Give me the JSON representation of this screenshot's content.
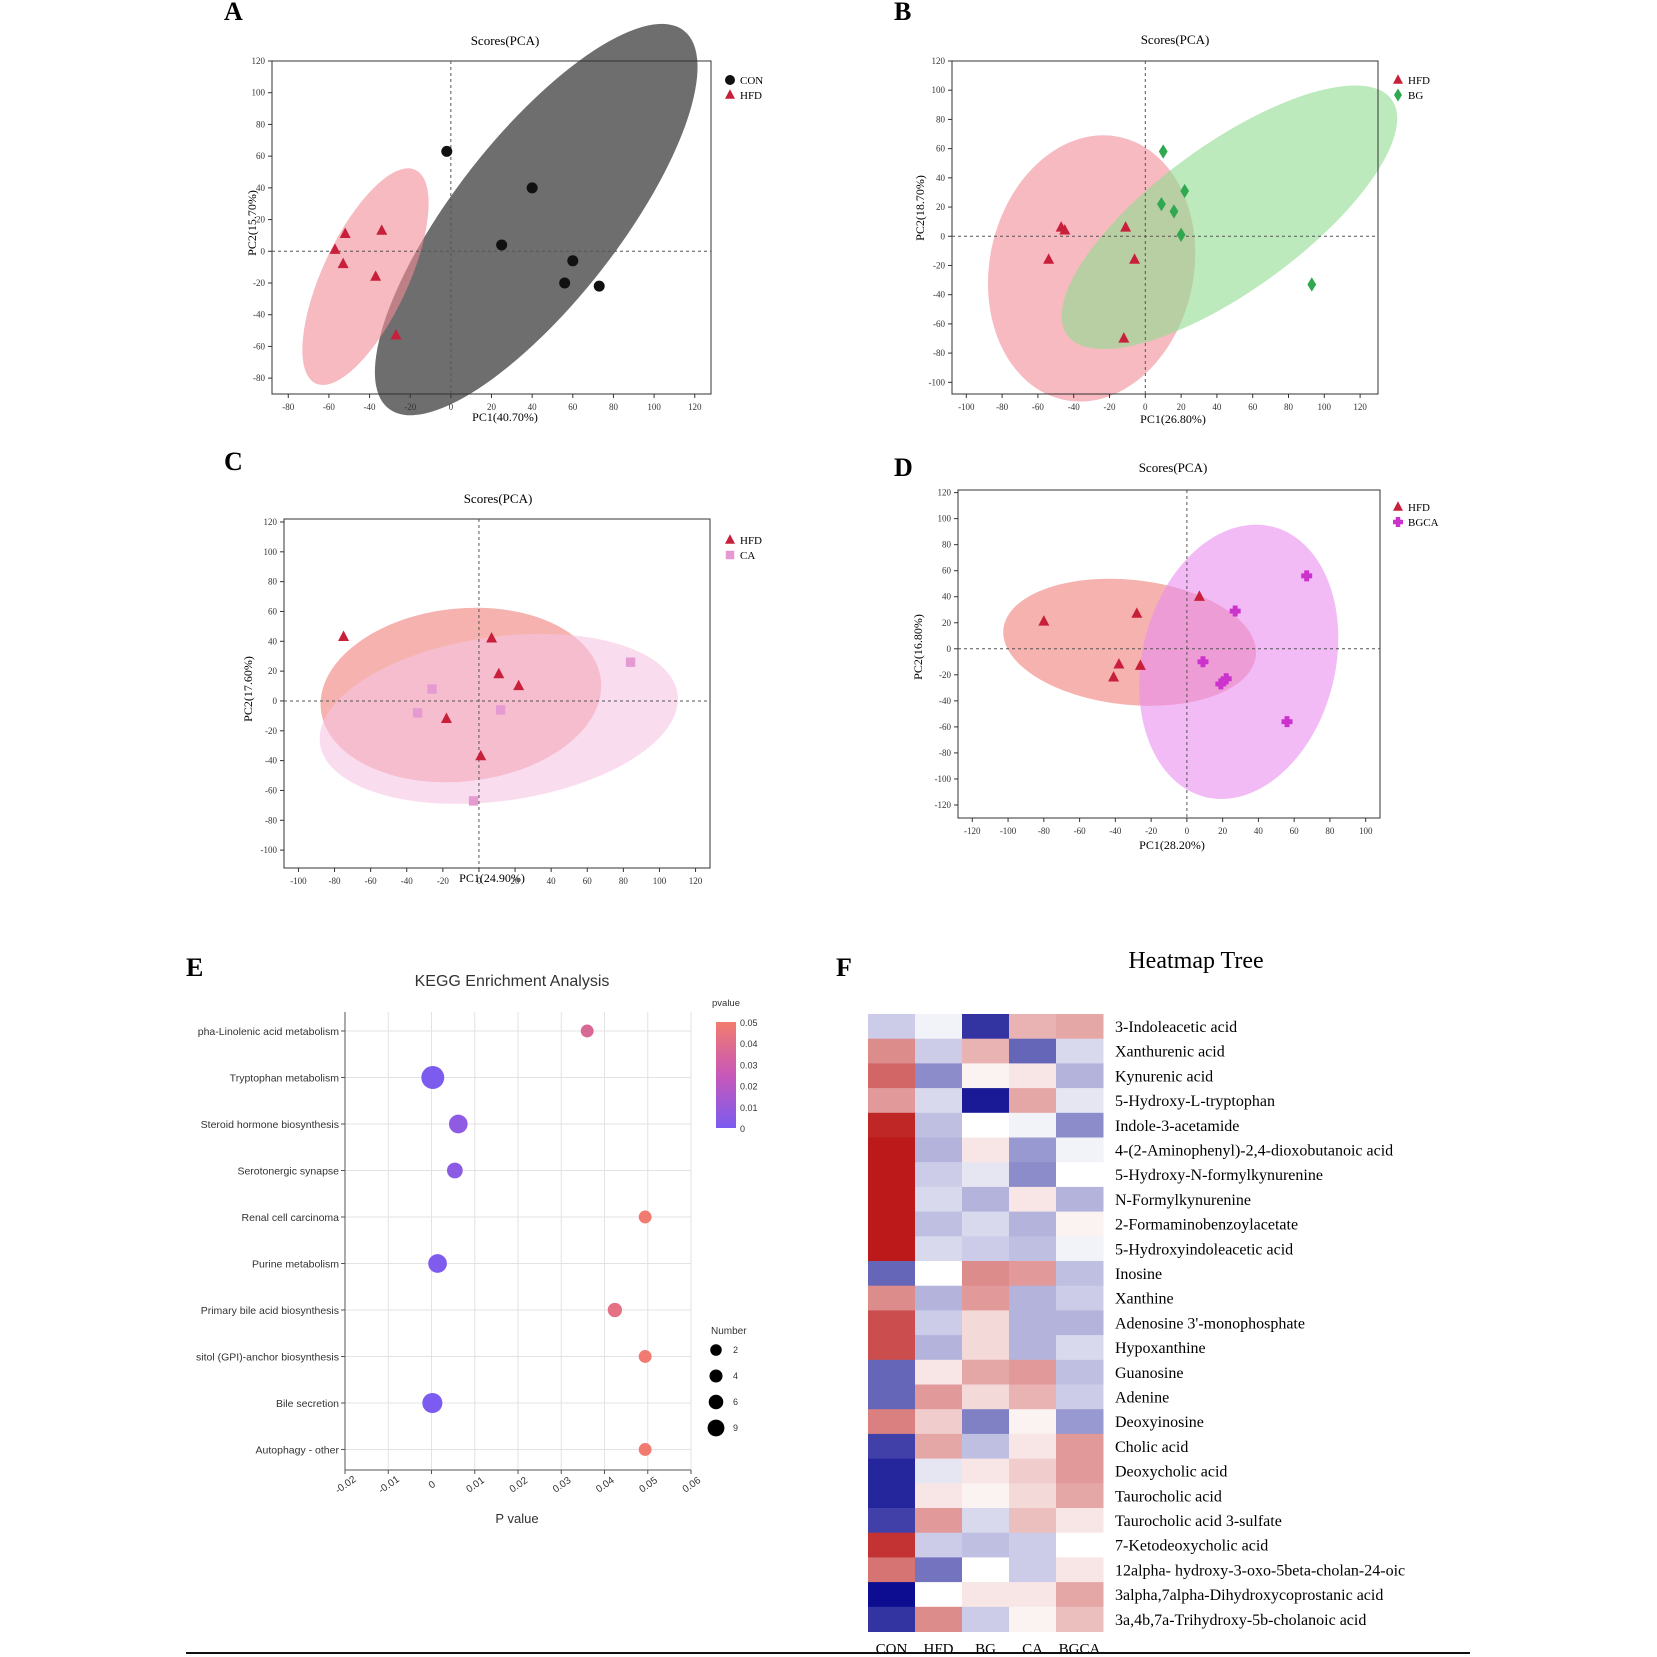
{
  "figure": {
    "panels": [
      {
        "label": "A",
        "title": "Scores(PCA)",
        "xlabel": "PC1(40.70%)",
        "ylabel": "PC2(15.70%)"
      },
      {
        "label": "B",
        "title": "Scores(PCA)",
        "xlabel": "PC1(26.80%)",
        "ylabel": "PC2(18.70%)"
      },
      {
        "label": "C",
        "title": "Scores(PCA)",
        "xlabel": "PC1(24.90%)",
        "ylabel": "PC2(17.60%)"
      },
      {
        "label": "D",
        "title": "Scores(PCA)",
        "xlabel": "PC1(28.20%)",
        "ylabel": "PC2(16.80%)"
      },
      {
        "label": "E",
        "title": "KEGG Enrichment Analysis",
        "xlabel": "P value"
      },
      {
        "label": "F",
        "title": "Heatmap Tree"
      }
    ]
  },
  "chart_data": [
    {
      "id": "A",
      "type": "scatter",
      "title": "Scores(PCA)",
      "xlabel": "PC1(40.70%)",
      "ylabel": "PC2(15.70%)",
      "xlim": [
        -88,
        128
      ],
      "ylim": [
        -90,
        120
      ],
      "xticks": [
        -80,
        -60,
        -40,
        -20,
        0,
        20,
        40,
        60,
        80,
        100,
        120
      ],
      "yticks": [
        -80,
        -60,
        -40,
        -20,
        0,
        20,
        40,
        60,
        80,
        100,
        120
      ],
      "series": [
        {
          "name": "CON",
          "marker": "circle",
          "color": "#111111",
          "fill": "#555555",
          "ellipse": {
            "cx": 42,
            "cy": 20,
            "rx": 118,
            "ry": 52,
            "angle_deg": -52
          },
          "points": [
            [
              -2,
              63
            ],
            [
              40,
              40
            ],
            [
              25,
              4
            ],
            [
              60,
              -6
            ],
            [
              56,
              -20
            ],
            [
              73,
              -22
            ]
          ]
        },
        {
          "name": "HFD",
          "marker": "triangle",
          "color": "#c8203a",
          "fill": "#f08c96",
          "ellipse": {
            "cx": -42,
            "cy": -16,
            "rx": 58,
            "ry": 27,
            "angle_deg": -65
          },
          "points": [
            [
              -52,
              11
            ],
            [
              -34,
              13
            ],
            [
              -57,
              1
            ],
            [
              -53,
              -8
            ],
            [
              -37,
              -16
            ],
            [
              -27,
              -53
            ]
          ]
        }
      ]
    },
    {
      "id": "B",
      "type": "scatter",
      "title": "Scores(PCA)",
      "xlabel": "PC1(26.80%)",
      "ylabel": "PC2(18.70%)",
      "xlim": [
        -108,
        130
      ],
      "ylim": [
        -108,
        120
      ],
      "xticks": [
        -100,
        -80,
        -60,
        -40,
        -20,
        0,
        20,
        40,
        60,
        80,
        100,
        120
      ],
      "yticks": [
        -100,
        -80,
        -60,
        -40,
        -20,
        0,
        20,
        40,
        60,
        80,
        100,
        120
      ],
      "series": [
        {
          "name": "HFD",
          "marker": "triangle",
          "color": "#c8203a",
          "fill": "#f08c96",
          "ellipse": {
            "cx": -30,
            "cy": -22,
            "rx": 57,
            "ry": 92,
            "angle_deg": 12
          },
          "points": [
            [
              -47,
              6
            ],
            [
              -45,
              4
            ],
            [
              -54,
              -16
            ],
            [
              -11,
              6
            ],
            [
              -6,
              -16
            ],
            [
              -12,
              -70
            ]
          ]
        },
        {
          "name": "BG",
          "marker": "diamond",
          "color": "#2fa84f",
          "fill": "#8fdc8f",
          "ellipse": {
            "cx": 47,
            "cy": 13,
            "rx": 112,
            "ry": 50,
            "angle_deg": -36
          },
          "points": [
            [
              10,
              58
            ],
            [
              9,
              22
            ],
            [
              16,
              17
            ],
            [
              22,
              31
            ],
            [
              20,
              1
            ],
            [
              93,
              -33
            ]
          ]
        }
      ]
    },
    {
      "id": "C",
      "type": "scatter",
      "title": "Scores(PCA)",
      "xlabel": "PC1(24.90%)",
      "ylabel": "PC2(17.60%)",
      "xlim": [
        -108,
        128
      ],
      "ylim": [
        -112,
        122
      ],
      "xticks": [
        -100,
        -80,
        -60,
        -40,
        -20,
        0,
        20,
        40,
        60,
        80,
        100,
        120
      ],
      "yticks": [
        -100,
        -80,
        -60,
        -40,
        -20,
        0,
        20,
        40,
        60,
        80,
        100,
        120
      ],
      "series": [
        {
          "name": "HFD",
          "marker": "triangle",
          "color": "#c8203a",
          "fill": "#f07e7a",
          "ellipse": {
            "cx": -10,
            "cy": 4,
            "rx": 78,
            "ry": 58,
            "angle_deg": -6
          },
          "points": [
            [
              -75,
              43
            ],
            [
              7,
              42
            ],
            [
              11,
              18
            ],
            [
              22,
              10
            ],
            [
              -18,
              -12
            ],
            [
              1,
              -37
            ]
          ]
        },
        {
          "name": "CA",
          "marker": "square",
          "color": "#e59ad2",
          "fill": "#f7c5e4",
          "ellipse": {
            "cx": 11,
            "cy": -12,
            "rx": 100,
            "ry": 55,
            "angle_deg": -8
          },
          "points": [
            [
              84,
              26
            ],
            [
              -26,
              8
            ],
            [
              -34,
              -8
            ],
            [
              12,
              -6
            ],
            [
              -3,
              -67
            ]
          ]
        }
      ]
    },
    {
      "id": "D",
      "type": "scatter",
      "title": "Scores(PCA)",
      "xlabel": "PC1(28.20%)",
      "ylabel": "PC2(16.80%)",
      "xlim": [
        -128,
        108
      ],
      "ylim": [
        -130,
        122
      ],
      "xticks": [
        -120,
        -100,
        -80,
        -60,
        -40,
        -20,
        0,
        20,
        40,
        60,
        80,
        100
      ],
      "yticks": [
        -120,
        -100,
        -80,
        -60,
        -40,
        -20,
        0,
        20,
        40,
        60,
        80,
        100,
        120
      ],
      "series": [
        {
          "name": "HFD",
          "marker": "triangle",
          "color": "#c8203a",
          "fill": "#f07e7a",
          "ellipse": {
            "cx": -32,
            "cy": 5,
            "rx": 71,
            "ry": 48,
            "angle_deg": 6
          },
          "points": [
            [
              -80,
              21
            ],
            [
              -28,
              27
            ],
            [
              7,
              40
            ],
            [
              -38,
              -12
            ],
            [
              -41,
              -22
            ],
            [
              -26,
              -13
            ]
          ]
        },
        {
          "name": "BGCA",
          "marker": "cross",
          "color": "#cc33cc",
          "fill": "#e98ef0",
          "ellipse": {
            "cx": 29,
            "cy": -10,
            "rx": 54,
            "ry": 107,
            "angle_deg": 14
          },
          "points": [
            [
              67,
              56
            ],
            [
              27,
              29
            ],
            [
              9,
              -10
            ],
            [
              22,
              -23
            ],
            [
              19,
              -27
            ],
            [
              56,
              -56
            ]
          ]
        }
      ]
    },
    {
      "id": "E",
      "type": "scatter",
      "title": "KEGG Enrichment Analysis",
      "xlabel": "P value",
      "ylabel": "",
      "xlim": [
        -0.02,
        0.06
      ],
      "xticks": [
        "-0.02",
        "-0.01",
        "0",
        "0.01",
        "0.02",
        "0.03",
        "0.04",
        "0.05",
        "0.06"
      ],
      "categories": [
        "Alpha-Linolenic acid metabolism",
        "Tryptophan metabolism",
        "Steroid hormone biosynthesis",
        "Serotonergic synapse",
        "Renal cell carcinoma",
        "Purine metabolism",
        "Primary bile acid biosynthesis",
        "Glycosylphosphatidylinositol (GPI)-anchor biosynthesis",
        "Bile secretion",
        "Autophagy - other"
      ],
      "category_labels": [
        "pha-Linolenic acid metabolism",
        "Tryptophan metabolism",
        "Steroid hormone biosynthesis",
        "Serotonergic synapse",
        "Renal cell carcinoma",
        "Purine metabolism",
        "Primary bile acid biosynthesis",
        "sitol (GPI)-anchor biosynthesis",
        "Bile secretion",
        "Autophagy - other"
      ],
      "pvalues": [
        0.036,
        0.0003,
        0.0062,
        0.0054,
        0.0494,
        0.0014,
        0.0424,
        0.0494,
        0.0002,
        0.0494
      ],
      "numbers": [
        2,
        9,
        6,
        4,
        2,
        6,
        3,
        2,
        7,
        2
      ],
      "colorbar": {
        "title": "pvalue",
        "ticks": [
          "0.05",
          "0.04",
          "0.03",
          "0.02",
          "0.01",
          "0"
        ],
        "low_color": "#7b5cf0",
        "mid_color": "#c858b8",
        "high_color": "#f27c6e"
      },
      "size_legend": {
        "title": "Number",
        "values": [
          2,
          4,
          6,
          9
        ]
      }
    },
    {
      "id": "F",
      "type": "heatmap",
      "title": "Heatmap Tree",
      "columns": [
        "CON",
        "HFD",
        "BG",
        "CA",
        "BGCA"
      ],
      "rows": [
        "3-Indoleacetic acid",
        "Xanthurenic acid",
        "Kynurenic acid",
        "5-Hydroxy-L-tryptophan",
        "Indole-3-acetamide",
        "4-(2-Aminophenyl)-2,4-dioxobutanoic acid",
        "5-Hydroxy-N-formylkynurenine",
        "N-Formylkynurenine",
        "2-Formaminobenzoylacetate",
        "5-Hydroxyindoleacetic acid",
        "Inosine",
        "Xanthine",
        "Adenosine 3'-monophosphate",
        "Hypoxanthine",
        "Guanosine",
        "Adenine",
        "Deoxyinosine",
        "Cholic acid",
        "Deoxycholic acid",
        "Taurocholic acid",
        "Taurocholic acid 3-sulfate",
        "7-Ketodeoxycholic acid",
        "12alpha- hydroxy-3-oxo-5beta-cholan-24-oic",
        "3alpha,7alpha-Dihydroxycoprostanic acid",
        "3a,4b,7a-Trihydroxy-5b-cholanoic acid"
      ],
      "color_scale": {
        "low": "#00008b",
        "mid": "#ffffff",
        "high": "#b40000"
      },
      "values": [
        [
          -0.4,
          -0.1,
          -1.6,
          0.6,
          0.7
        ],
        [
          0.9,
          -0.4,
          0.6,
          -1.2,
          -0.3
        ],
        [
          1.2,
          -0.9,
          0.1,
          0.2,
          -0.6
        ],
        [
          0.8,
          -0.3,
          -1.8,
          0.7,
          -0.2
        ],
        [
          1.7,
          -0.5,
          0.0,
          -0.1,
          -0.9
        ],
        [
          1.8,
          -0.6,
          0.2,
          -0.8,
          -0.1
        ],
        [
          1.8,
          -0.4,
          -0.2,
          -0.9,
          0.0
        ],
        [
          1.8,
          -0.3,
          -0.6,
          0.2,
          -0.6
        ],
        [
          1.8,
          -0.5,
          -0.3,
          -0.6,
          0.1
        ],
        [
          1.8,
          -0.3,
          -0.4,
          -0.5,
          -0.1
        ],
        [
          -1.2,
          0.0,
          0.9,
          0.8,
          -0.5
        ],
        [
          0.9,
          -0.6,
          0.8,
          -0.6,
          -0.4
        ],
        [
          1.4,
          -0.4,
          0.3,
          -0.6,
          -0.6
        ],
        [
          1.4,
          -0.6,
          0.3,
          -0.6,
          -0.3
        ],
        [
          -1.2,
          0.2,
          0.7,
          0.8,
          -0.5
        ],
        [
          -1.2,
          0.8,
          0.3,
          0.6,
          -0.4
        ],
        [
          1.0,
          0.4,
          -1.0,
          0.1,
          -0.8
        ],
        [
          -1.5,
          0.7,
          -0.5,
          0.2,
          0.8
        ],
        [
          -1.7,
          -0.2,
          0.2,
          0.4,
          0.8
        ],
        [
          -1.7,
          0.2,
          0.1,
          0.3,
          0.7
        ],
        [
          -1.5,
          0.8,
          -0.3,
          0.5,
          0.2
        ],
        [
          1.6,
          -0.4,
          -0.5,
          -0.4,
          0.0
        ],
        [
          1.1,
          -1.1,
          0.0,
          -0.4,
          0.2
        ],
        [
          -1.9,
          0.0,
          0.2,
          0.2,
          0.7
        ],
        [
          -1.6,
          0.9,
          -0.4,
          0.1,
          0.5
        ]
      ]
    }
  ]
}
